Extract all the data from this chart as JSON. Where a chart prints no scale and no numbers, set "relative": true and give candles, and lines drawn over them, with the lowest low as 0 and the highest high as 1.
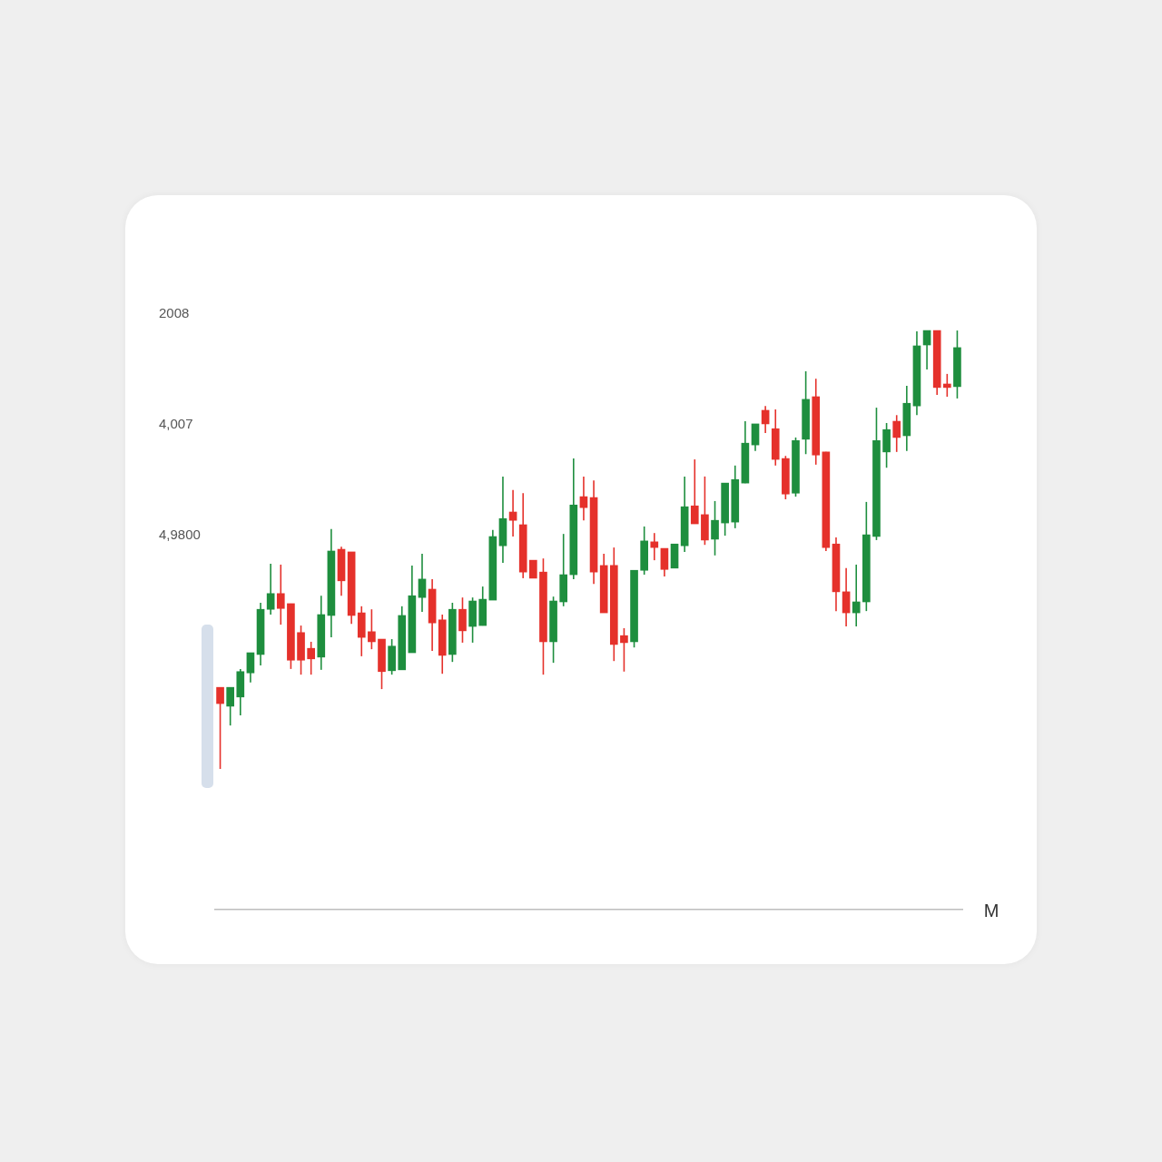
{
  "chart_data": {
    "type": "candlestick",
    "relative": true,
    "annotations": [
      "2008",
      "4,007",
      "4,9800",
      "M"
    ],
    "categories": [
      null,
      null,
      null,
      null,
      null,
      null,
      null,
      null,
      null,
      null,
      null,
      null,
      null,
      null,
      null,
      null,
      null,
      null,
      null,
      null,
      null,
      null,
      null,
      null,
      null,
      null,
      null,
      null,
      null,
      null,
      null,
      null,
      null,
      null,
      null,
      null,
      null,
      null,
      null,
      null,
      null,
      null,
      null,
      null,
      null,
      null,
      null,
      null,
      null,
      null,
      null,
      null,
      null,
      null,
      null,
      null,
      null,
      null,
      null,
      null,
      null,
      null,
      null,
      null,
      null,
      null,
      null,
      null,
      null,
      null,
      null,
      null,
      null,
      null
    ],
    "ohlc": [
      [
        0.186,
        0.186,
        0.0,
        0.149
      ],
      [
        0.143,
        0.186,
        0.099,
        0.186
      ],
      [
        0.164,
        0.228,
        0.122,
        0.222
      ],
      [
        0.219,
        0.265,
        0.197,
        0.265
      ],
      [
        0.261,
        0.379,
        0.236,
        0.364
      ],
      [
        0.364,
        0.468,
        0.352,
        0.4
      ],
      [
        0.4,
        0.466,
        0.329,
        0.366
      ],
      [
        0.377,
        0.377,
        0.228,
        0.248
      ],
      [
        0.311,
        0.327,
        0.215,
        0.248
      ],
      [
        0.275,
        0.29,
        0.215,
        0.251
      ],
      [
        0.255,
        0.395,
        0.226,
        0.352
      ],
      [
        0.35,
        0.547,
        0.3,
        0.497
      ],
      [
        0.501,
        0.507,
        0.395,
        0.429
      ],
      [
        0.495,
        0.495,
        0.331,
        0.35
      ],
      [
        0.356,
        0.371,
        0.257,
        0.3
      ],
      [
        0.313,
        0.364,
        0.273,
        0.29
      ],
      [
        0.296,
        0.296,
        0.182,
        0.222
      ],
      [
        0.224,
        0.296,
        0.215,
        0.28
      ],
      [
        0.226,
        0.371,
        0.226,
        0.35
      ],
      [
        0.265,
        0.464,
        0.265,
        0.395
      ],
      [
        0.391,
        0.491,
        0.358,
        0.433
      ],
      [
        0.41,
        0.433,
        0.269,
        0.333
      ],
      [
        0.34,
        0.352,
        0.217,
        0.259
      ],
      [
        0.261,
        0.379,
        0.244,
        0.364
      ],
      [
        0.364,
        0.391,
        0.288,
        0.315
      ],
      [
        0.325,
        0.391,
        0.288,
        0.383
      ],
      [
        0.327,
        0.416,
        0.327,
        0.387
      ],
      [
        0.385,
        0.545,
        0.385,
        0.53
      ],
      [
        0.509,
        0.667,
        0.47,
        0.571
      ],
      [
        0.586,
        0.636,
        0.53,
        0.567
      ],
      [
        0.557,
        0.629,
        0.435,
        0.449
      ],
      [
        0.476,
        0.476,
        0.435,
        0.435
      ],
      [
        0.449,
        0.48,
        0.215,
        0.29
      ],
      [
        0.29,
        0.393,
        0.242,
        0.383
      ],
      [
        0.381,
        0.536,
        0.371,
        0.443
      ],
      [
        0.443,
        0.708,
        0.433,
        0.602
      ],
      [
        0.621,
        0.667,
        0.567,
        0.596
      ],
      [
        0.619,
        0.658,
        0.422,
        0.449
      ],
      [
        0.464,
        0.491,
        0.356,
        0.356
      ],
      [
        0.464,
        0.505,
        0.246,
        0.284
      ],
      [
        0.304,
        0.321,
        0.222,
        0.288
      ],
      [
        0.29,
        0.453,
        0.277,
        0.453
      ],
      [
        0.453,
        0.553,
        0.443,
        0.52
      ],
      [
        0.518,
        0.538,
        0.476,
        0.505
      ],
      [
        0.503,
        0.503,
        0.439,
        0.455
      ],
      [
        0.458,
        0.513,
        0.458,
        0.513
      ],
      [
        0.509,
        0.667,
        0.495,
        0.598
      ],
      [
        0.6,
        0.706,
        0.559,
        0.559
      ],
      [
        0.58,
        0.667,
        0.511,
        0.522
      ],
      [
        0.524,
        0.611,
        0.487,
        0.567
      ],
      [
        0.561,
        0.652,
        0.532,
        0.652
      ],
      [
        0.563,
        0.692,
        0.549,
        0.66
      ],
      [
        0.652,
        0.793,
        0.652,
        0.743
      ],
      [
        0.739,
        0.787,
        0.725,
        0.787
      ],
      [
        0.818,
        0.828,
        0.766,
        0.787
      ],
      [
        0.776,
        0.82,
        0.692,
        0.706
      ],
      [
        0.708,
        0.714,
        0.615,
        0.627
      ],
      [
        0.629,
        0.756,
        0.621,
        0.749
      ],
      [
        0.752,
        0.907,
        0.718,
        0.843
      ],
      [
        0.849,
        0.89,
        0.694,
        0.716
      ],
      [
        0.723,
        0.723,
        0.497,
        0.505
      ],
      [
        0.513,
        0.528,
        0.36,
        0.404
      ],
      [
        0.404,
        0.458,
        0.325,
        0.356
      ],
      [
        0.356,
        0.466,
        0.325,
        0.381
      ],
      [
        0.381,
        0.609,
        0.36,
        0.534
      ],
      [
        0.53,
        0.824,
        0.522,
        0.749
      ],
      [
        0.723,
        0.789,
        0.687,
        0.774
      ],
      [
        0.793,
        0.807,
        0.723,
        0.756
      ],
      [
        0.76,
        0.874,
        0.725,
        0.834
      ],
      [
        0.828,
        0.998,
        0.807,
        0.965
      ],
      [
        0.967,
        1.0,
        0.911,
        1.0
      ],
      [
        1.0,
        1.0,
        0.853,
        0.87
      ],
      [
        0.878,
        0.901,
        0.849,
        0.87
      ],
      [
        0.872,
        1.0,
        0.845,
        0.961
      ]
    ],
    "colors": [
      "#e5312b",
      "#1e8e3e",
      "#1e8e3e",
      "#1e8e3e",
      "#1e8e3e",
      "#1e8e3e",
      "#e5312b",
      "#e5312b",
      "#e5312b",
      "#e5312b",
      "#1e8e3e",
      "#1e8e3e",
      "#e5312b",
      "#e5312b",
      "#e5312b",
      "#e5312b",
      "#e5312b",
      "#1e8e3e",
      "#1e8e3e",
      "#1e8e3e",
      "#1e8e3e",
      "#e5312b",
      "#e5312b",
      "#1e8e3e",
      "#e5312b",
      "#1e8e3e",
      "#1e8e3e",
      "#1e8e3e",
      "#1e8e3e",
      "#e5312b",
      "#e5312b",
      "#e5312b",
      "#e5312b",
      "#1e8e3e",
      "#1e8e3e",
      "#1e8e3e",
      "#e5312b",
      "#e5312b",
      "#e5312b",
      "#e5312b",
      "#e5312b",
      "#1e8e3e",
      "#1e8e3e",
      "#e5312b",
      "#e5312b",
      "#1e8e3e",
      "#1e8e3e",
      "#e5312b",
      "#e5312b",
      "#1e8e3e",
      "#1e8e3e",
      "#1e8e3e",
      "#1e8e3e",
      "#1e8e3e",
      "#e5312b",
      "#e5312b",
      "#e5312b",
      "#1e8e3e",
      "#1e8e3e",
      "#e5312b",
      "#e5312b",
      "#e5312b",
      "#e5312b",
      "#1e8e3e",
      "#1e8e3e",
      "#1e8e3e",
      "#1e8e3e",
      "#e5312b",
      "#1e8e3e",
      "#1e8e3e",
      "#1e8e3e",
      "#e5312b",
      "#e5312b",
      "#1e8e3e"
    ]
  }
}
